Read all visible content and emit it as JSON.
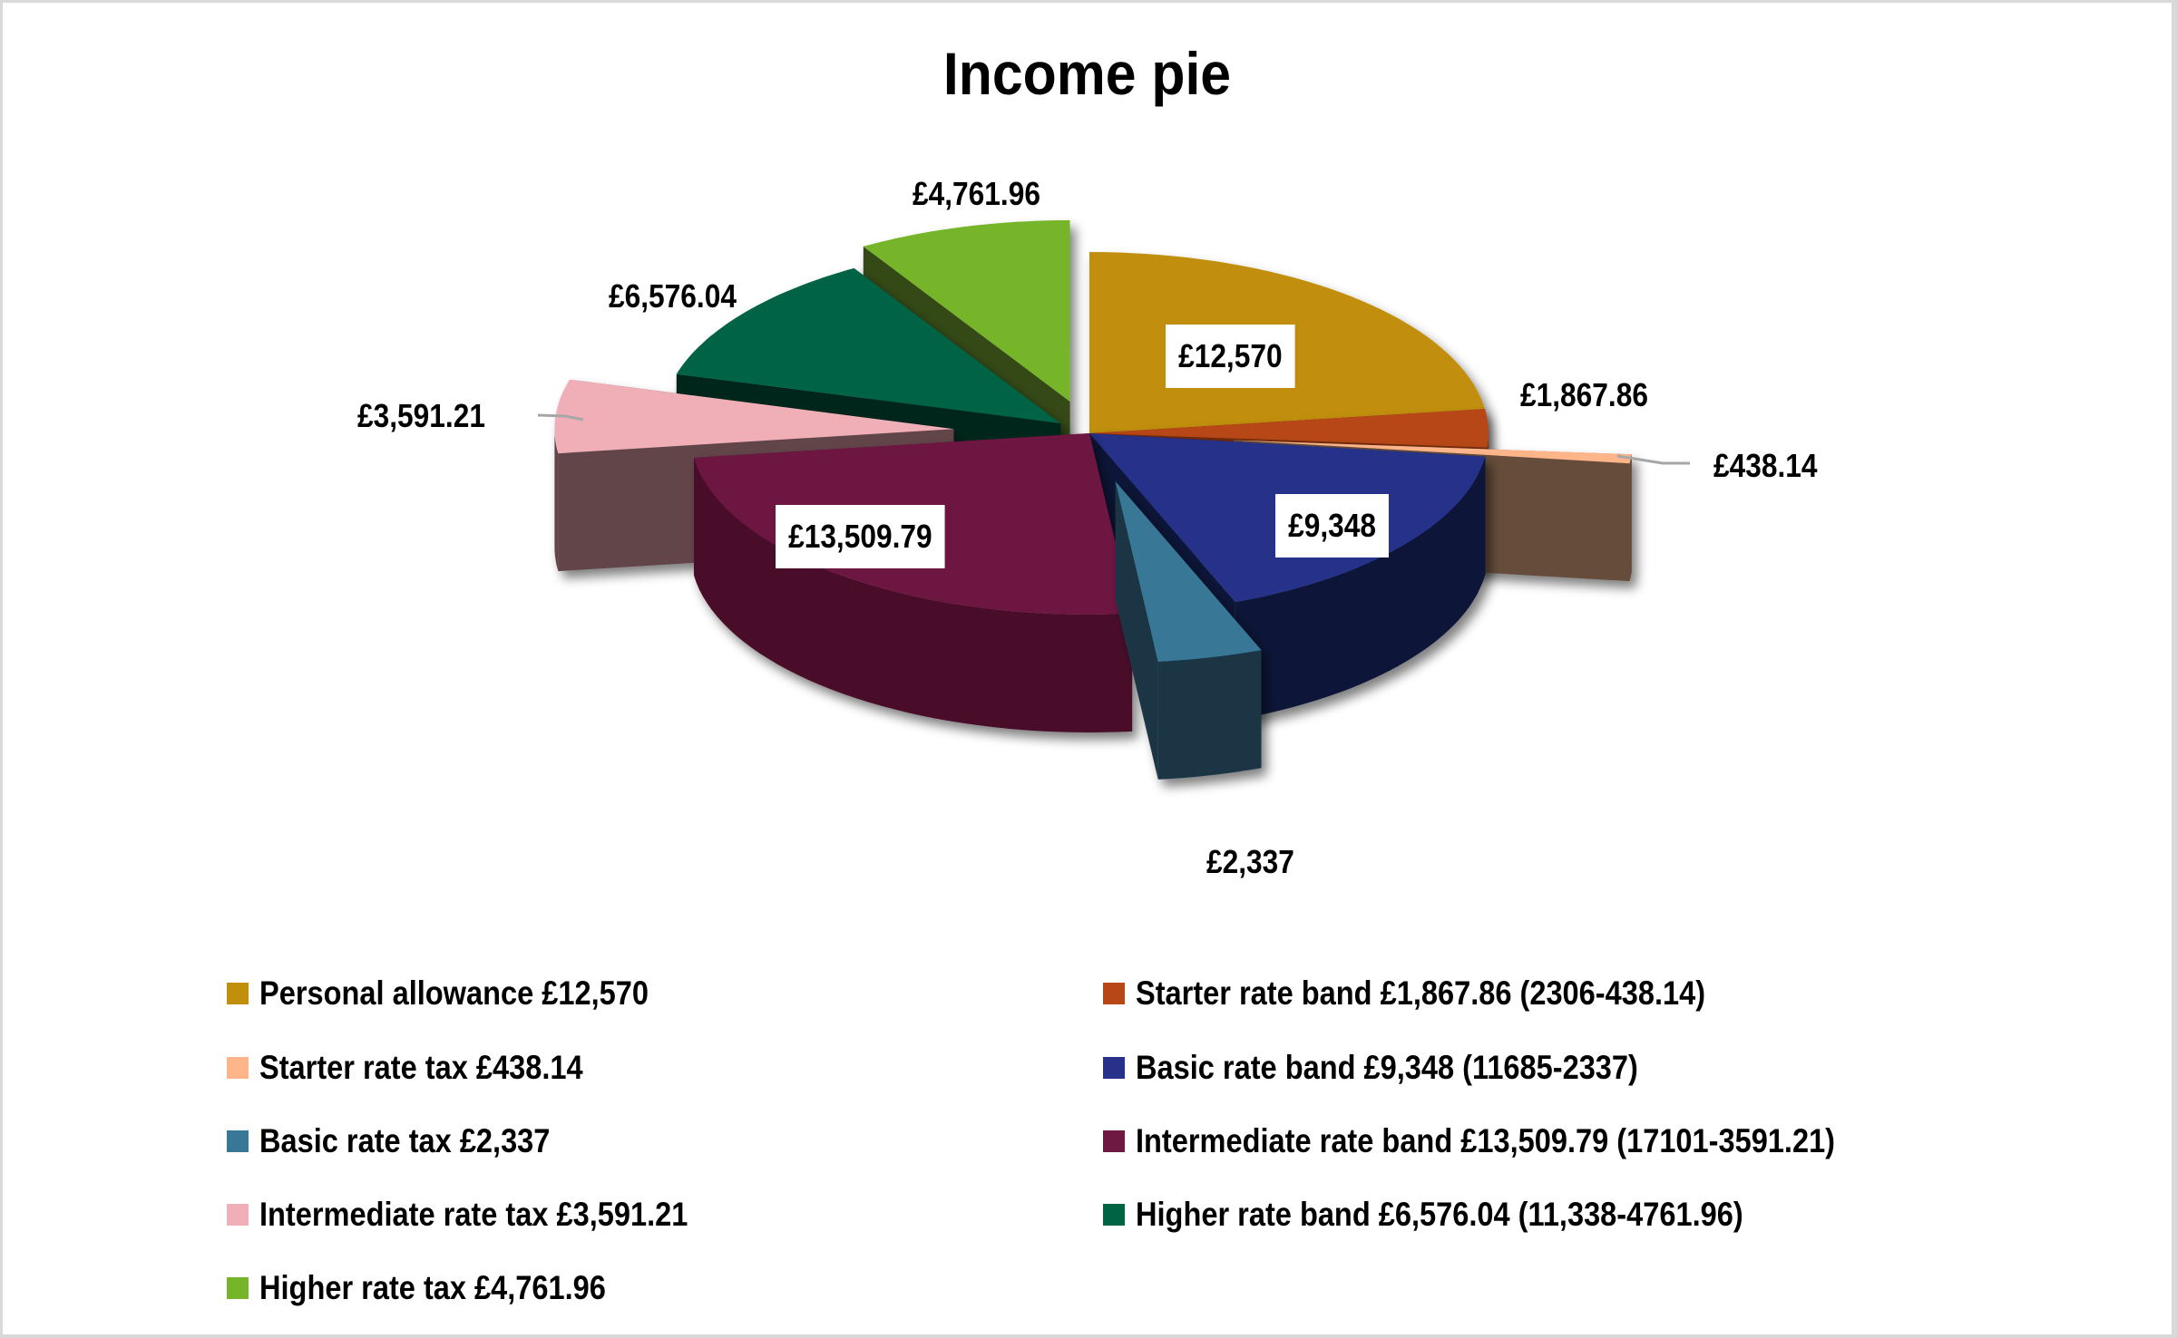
{
  "chart_data": {
    "type": "pie",
    "style": "3d-exploded",
    "title": "Income pie",
    "legend_position": "bottom",
    "total": 55000,
    "slices": [
      {
        "name": "Personal allowance",
        "value": 12570,
        "label": "£12,570",
        "legend": "Personal allowance £12,570",
        "color": "#C18F0B",
        "side": "#7A5B07"
      },
      {
        "name": "Starter rate band",
        "value": 1867.86,
        "label": "£1,867.86",
        "legend": "Starter rate band £1,867.86 (2306-438.14)",
        "color": "#B74717",
        "side": "#6E2A0E"
      },
      {
        "name": "Starter rate tax",
        "value": 438.14,
        "label": "£438.14",
        "legend": "Starter rate tax £438.14",
        "color": "#FFB58A",
        "side": "#664D3B"
      },
      {
        "name": "Basic rate band",
        "value": 9348,
        "label": "£9,348",
        "legend": "Basic rate band £9,348 (11685-2337)",
        "color": "#27318A",
        "side": "#0F1539"
      },
      {
        "name": "Basic rate tax",
        "value": 2337,
        "label": "£2,337",
        "legend": "Basic rate tax £2,337",
        "color": "#387795",
        "side": "#1B3444"
      },
      {
        "name": "Intermediate rate band",
        "value": 13509.79,
        "label": "£13,509.79",
        "legend": "Intermediate rate band £13,509.79 (17101-3591.21)",
        "color": "#6E1942",
        "side": "#4A1029"
      },
      {
        "name": "Intermediate rate tax",
        "value": 3591.21,
        "label": "£3,591.21",
        "legend": "Intermediate rate tax £3,591.21",
        "color": "#F0AEB7",
        "side": "#62454A"
      },
      {
        "name": "Higher rate band",
        "value": 6576.04,
        "label": "£6,576.04",
        "legend": "Higher rate band £6,576.04 (11,338-4761.96)",
        "color": "#006444",
        "side": "#00281C"
      },
      {
        "name": "Higher rate tax",
        "value": 4761.96,
        "label": "£4,761.96",
        "legend": "Higher rate tax £4,761.96",
        "color": "#76B52A",
        "side": "#344A12"
      }
    ]
  },
  "title": "Income pie",
  "data_labels": [
    {
      "text": "£12,570"
    },
    {
      "text": "£1,867.86"
    },
    {
      "text": "£438.14"
    },
    {
      "text": "£9,348"
    },
    {
      "text": "£2,337"
    },
    {
      "text": "£13,509.79"
    },
    {
      "text": "£3,591.21"
    },
    {
      "text": "£6,576.04"
    },
    {
      "text": "£4,761.96"
    }
  ],
  "legend": {
    "items": [
      {
        "text": "Personal allowance £12,570",
        "color": "#C18F0B"
      },
      {
        "text": "Starter rate band £1,867.86 (2306-438.14)",
        "color": "#B74717"
      },
      {
        "text": "Starter rate tax £438.14",
        "color": "#FFB58A"
      },
      {
        "text": "Basic rate band £9,348 (11685-2337)",
        "color": "#27318A"
      },
      {
        "text": "Basic rate tax £2,337",
        "color": "#387795"
      },
      {
        "text": "Intermediate rate band £13,509.79 (17101-3591.21)",
        "color": "#6E1942"
      },
      {
        "text": "Intermediate rate tax £3,591.21",
        "color": "#F0AEB7"
      },
      {
        "text": "Higher rate band £6,576.04 (11,338-4761.96)",
        "color": "#006444"
      },
      {
        "text": "Higher rate tax £4,761.96",
        "color": "#76B52A"
      }
    ]
  }
}
